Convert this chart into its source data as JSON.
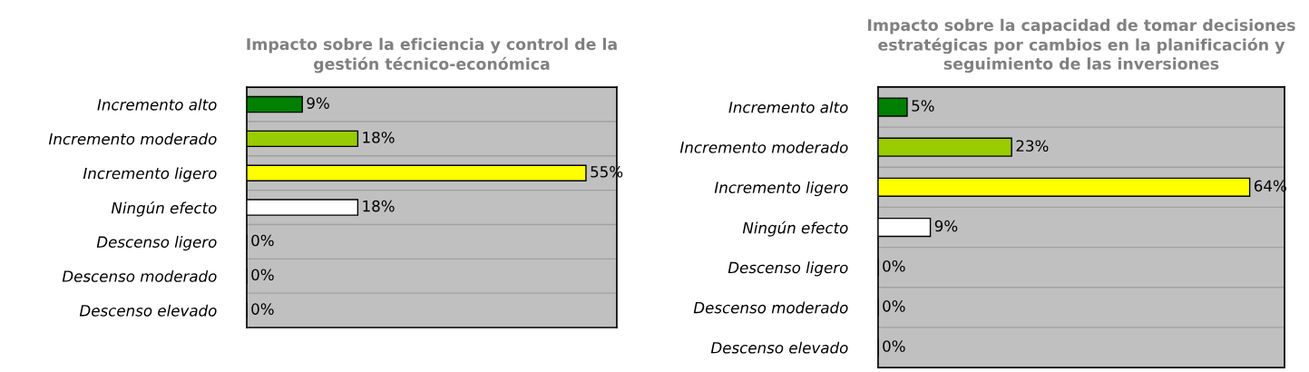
{
  "chart_data": [
    {
      "type": "bar",
      "orientation": "horizontal",
      "title": "Impacto sobre la eficiencia y control de la\ngestión técnico-económica",
      "categories": [
        "Incremento alto",
        "Incremento moderado",
        "Incremento ligero",
        "Ningún efecto",
        "Descenso ligero",
        "Descenso moderado",
        "Descenso elevado"
      ],
      "values": [
        9,
        18,
        55,
        18,
        0,
        0,
        0
      ],
      "colors": [
        "#008000",
        "#99cc00",
        "#ffff00",
        "#ffffff",
        "#ffffff",
        "#ffffff",
        "#ffffff"
      ],
      "value_labels": [
        "9%",
        "18%",
        "55%",
        "18%",
        "0%",
        "0%",
        "0%"
      ],
      "xlim": [
        0,
        60
      ],
      "grid": "y",
      "tick_labels": "y"
    },
    {
      "type": "bar",
      "orientation": "horizontal",
      "title": "Impacto sobre la capacidad de tomar decisiones\nestratégicas por cambios en la planificación y\nseguimiento de las inversiones",
      "categories": [
        "Incremento alto",
        "Incremento moderado",
        "Incremento ligero",
        "Ningún efecto",
        "Descenso ligero",
        "Descenso moderado",
        "Descenso elevado"
      ],
      "values": [
        5,
        23,
        64,
        9,
        0,
        0,
        0
      ],
      "colors": [
        "#008000",
        "#99cc00",
        "#ffff00",
        "#ffffff",
        "#ffffff",
        "#ffffff",
        "#ffffff"
      ],
      "value_labels": [
        "5%",
        "23%",
        "64%",
        "9%",
        "0%",
        "0%",
        "0%"
      ],
      "xlim": [
        0,
        70
      ],
      "grid": "y",
      "tick_labels": "y"
    }
  ]
}
